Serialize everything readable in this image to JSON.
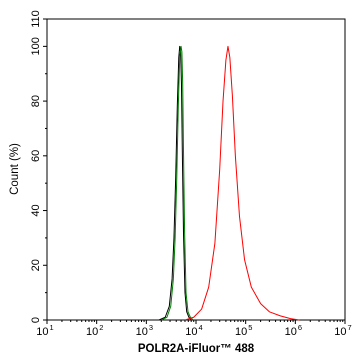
{
  "chart_data": {
    "type": "line",
    "xlabel": "POLR2A-iFluor™ 488",
    "ylabel": "Count  (%)",
    "x_scale": "log",
    "xlim": [
      10,
      10000000
    ],
    "ylim": [
      0,
      110
    ],
    "grid": false,
    "legend": "none",
    "x_ticks": [
      {
        "base": "10",
        "exp": "1"
      },
      {
        "base": "10",
        "exp": "2"
      },
      {
        "base": "10",
        "exp": "3"
      },
      {
        "base": "10",
        "exp": "4"
      },
      {
        "base": "10",
        "exp": "5"
      },
      {
        "base": "10",
        "exp": "6"
      },
      {
        "base": "10",
        "exp": "7"
      }
    ],
    "y_ticks": [
      "0",
      "20",
      "40",
      "60",
      "80",
      "100",
      "110"
    ],
    "series": [
      {
        "color": "#000000",
        "x": [
          1800,
          2400,
          2900,
          3300,
          3600,
          3900,
          4200,
          4500,
          4700,
          4900,
          5100,
          5300,
          5600,
          6000,
          6500,
          7200,
          8000
        ],
        "y": [
          0,
          1,
          5,
          15,
          30,
          52,
          78,
          96,
          100,
          98,
          86,
          62,
          32,
          10,
          3,
          1,
          0
        ]
      },
      {
        "color": "#008000",
        "x": [
          2000,
          2600,
          3100,
          3500,
          3800,
          4100,
          4400,
          4700,
          5000,
          5200,
          5400,
          5600,
          5900,
          6300,
          6900,
          7700,
          8800
        ],
        "y": [
          0,
          1,
          5,
          15,
          30,
          52,
          78,
          96,
          100,
          98,
          86,
          62,
          32,
          10,
          3,
          1,
          0
        ]
      },
      {
        "color": "#ff0000",
        "x": [
          6000,
          9000,
          13000,
          18000,
          24000,
          30000,
          35000,
          40000,
          44000,
          48000,
          54000,
          62000,
          75000,
          95000,
          130000,
          200000,
          300000,
          500000,
          800000,
          1200000
        ],
        "y": [
          0,
          1,
          4,
          12,
          28,
          55,
          80,
          95,
          100,
          96,
          82,
          60,
          38,
          22,
          12,
          6,
          3,
          1.5,
          0.5,
          0
        ]
      }
    ]
  }
}
